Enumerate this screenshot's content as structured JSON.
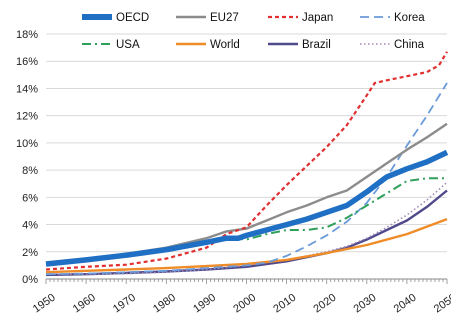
{
  "chart_data": {
    "type": "line",
    "title": "",
    "xlabel": "",
    "ylabel": "",
    "xlim": [
      1950,
      2050
    ],
    "ylim": [
      0,
      18
    ],
    "y_tick_format": "percent",
    "x_ticks": [
      1950,
      1960,
      1970,
      1980,
      1990,
      2000,
      2010,
      2020,
      2030,
      2040,
      2050
    ],
    "y_ticks": [
      0,
      2,
      4,
      6,
      8,
      10,
      12,
      14,
      16,
      18
    ],
    "grid": "horizontal",
    "legend_position": "top",
    "series": [
      {
        "name": "OECD",
        "color": "#1f6fc4",
        "style": "solid-thick",
        "x": [
          1950,
          1960,
          1970,
          1980,
          1990,
          1995,
          1998,
          2000,
          2005,
          2010,
          2015,
          2020,
          2025,
          2030,
          2035,
          2040,
          2045,
          2050
        ],
        "y": [
          1.1,
          1.4,
          1.75,
          2.15,
          2.7,
          3.0,
          3.0,
          3.2,
          3.6,
          4.0,
          4.4,
          4.9,
          5.4,
          6.4,
          7.5,
          8.1,
          8.6,
          9.3
        ]
      },
      {
        "name": "EU27",
        "color": "#8c8c8c",
        "style": "solid",
        "x": [
          1950,
          1960,
          1970,
          1980,
          1990,
          1995,
          2000,
          2005,
          2010,
          2015,
          2020,
          2025,
          2030,
          2035,
          2040,
          2045,
          2050
        ],
        "y": [
          1.15,
          1.45,
          1.85,
          2.3,
          3.0,
          3.5,
          3.7,
          4.3,
          4.9,
          5.4,
          6.0,
          6.5,
          7.5,
          8.5,
          9.5,
          10.4,
          11.4
        ]
      },
      {
        "name": "Japan",
        "color": "#e03030",
        "style": "dashed",
        "x": [
          1950,
          1960,
          1970,
          1980,
          1990,
          1995,
          2000,
          2005,
          2010,
          2015,
          2020,
          2025,
          2030,
          2032,
          2035,
          2040,
          2045,
          2048,
          2050
        ],
        "y": [
          0.7,
          0.9,
          1.05,
          1.5,
          2.3,
          3.3,
          3.8,
          5.4,
          6.9,
          8.3,
          9.7,
          11.3,
          13.5,
          14.4,
          14.6,
          14.9,
          15.2,
          15.7,
          16.7
        ]
      },
      {
        "name": "Korea",
        "color": "#6a9bd8",
        "style": "long-dash",
        "x": [
          1950,
          1960,
          1970,
          1980,
          1990,
          2000,
          2005,
          2010,
          2015,
          2020,
          2025,
          2030,
          2035,
          2040,
          2045,
          2050
        ],
        "y": [
          0.35,
          0.4,
          0.5,
          0.6,
          0.8,
          1.0,
          1.2,
          1.7,
          2.4,
          3.2,
          4.2,
          5.6,
          7.5,
          9.8,
          12.0,
          14.4
        ]
      },
      {
        "name": "USA",
        "color": "#2ea05a",
        "style": "dash-dot",
        "x": [
          1950,
          1960,
          1970,
          1980,
          1990,
          1995,
          2000,
          2005,
          2010,
          2015,
          2020,
          2025,
          2030,
          2035,
          2040,
          2045,
          2050
        ],
        "y": [
          1.1,
          1.4,
          1.7,
          2.2,
          2.8,
          3.0,
          2.9,
          3.3,
          3.6,
          3.6,
          3.8,
          4.5,
          5.4,
          6.3,
          7.2,
          7.4,
          7.4
        ]
      },
      {
        "name": "World",
        "color": "#f08c28",
        "style": "solid",
        "x": [
          1950,
          1960,
          1970,
          1980,
          1990,
          2000,
          2010,
          2020,
          2030,
          2040,
          2050
        ],
        "y": [
          0.5,
          0.6,
          0.7,
          0.8,
          0.95,
          1.1,
          1.4,
          1.9,
          2.5,
          3.3,
          4.4
        ]
      },
      {
        "name": "Brazil",
        "color": "#504a8c",
        "style": "solid",
        "x": [
          1950,
          1960,
          1970,
          1980,
          1990,
          2000,
          2010,
          2020,
          2025,
          2030,
          2035,
          2040,
          2045,
          2050
        ],
        "y": [
          0.3,
          0.35,
          0.45,
          0.55,
          0.7,
          0.9,
          1.3,
          1.9,
          2.3,
          2.9,
          3.6,
          4.3,
          5.3,
          6.5
        ]
      },
      {
        "name": "China",
        "color": "#a08ab8",
        "style": "dotted",
        "x": [
          1950,
          1960,
          1970,
          1980,
          1990,
          2000,
          2010,
          2020,
          2025,
          2030,
          2035,
          2040,
          2045,
          2050
        ],
        "y": [
          0.35,
          0.35,
          0.4,
          0.5,
          0.7,
          1.0,
          1.4,
          2.0,
          2.4,
          3.0,
          3.8,
          4.7,
          5.8,
          7.1
        ]
      }
    ]
  }
}
